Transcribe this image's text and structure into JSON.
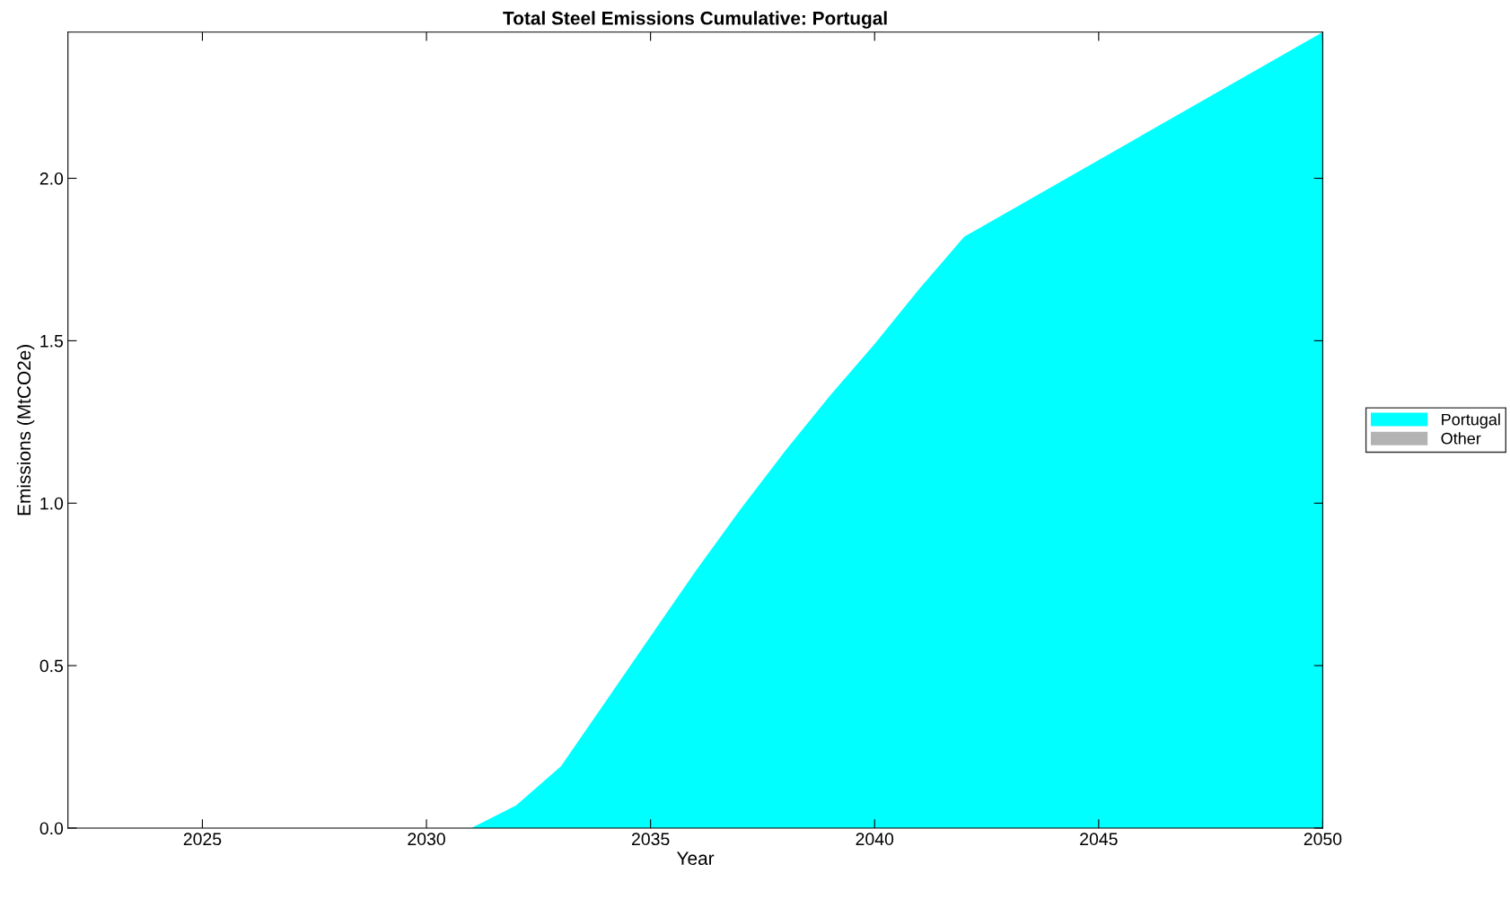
{
  "chart_data": {
    "type": "area",
    "title": "Total Steel Emissions Cumulative: Portugal",
    "xlabel": "Year",
    "ylabel": "Emissions (MtCO2e)",
    "x": [
      2022,
      2031,
      2032,
      2033,
      2034,
      2035,
      2036,
      2037,
      2038,
      2039,
      2040,
      2041,
      2042,
      2050
    ],
    "series": [
      {
        "name": "Portugal",
        "color": "#00ffff",
        "values": [
          0,
          0,
          0.07,
          0.19,
          0.39,
          0.59,
          0.79,
          0.98,
          1.16,
          1.33,
          1.49,
          1.66,
          1.82,
          2.45
        ]
      },
      {
        "name": "Other",
        "color": "#b3b3b3",
        "values": [
          null,
          null,
          null,
          null,
          null,
          null,
          null,
          null,
          null,
          null,
          null,
          null,
          null,
          null
        ]
      }
    ],
    "xlim": [
      2022,
      2050
    ],
    "xticks": [
      2025,
      2030,
      2035,
      2040,
      2045,
      2050
    ],
    "ylim": [
      0,
      2.45
    ],
    "yticks": [
      {
        "value": 0,
        "label": "0.0"
      },
      {
        "value": 0.5,
        "label": "0.5"
      },
      {
        "value": 1,
        "label": "1.0"
      },
      {
        "value": 1.5,
        "label": "1.5"
      },
      {
        "value": 2,
        "label": "2.0"
      }
    ],
    "grid": false,
    "legend": "right"
  }
}
